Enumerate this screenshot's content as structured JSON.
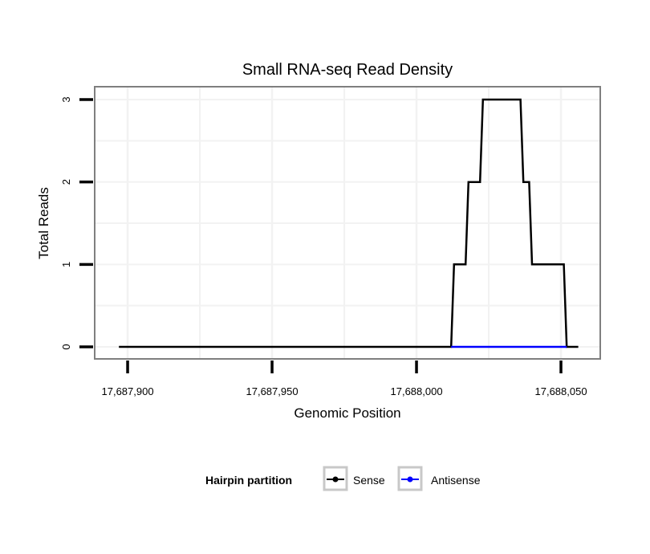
{
  "chart_data": {
    "type": "line",
    "title": "Small RNA-seq Read Density",
    "xlabel": "Genomic Position",
    "ylabel": "Total Reads",
    "xlim": [
      17687888.6,
      17688063.6
    ],
    "ylim": [
      -0.146,
      3.156
    ],
    "x_ticks": [
      17687900,
      17687950,
      17688000,
      17688050
    ],
    "x_tick_labels": [
      "17,687,900",
      "17,687,950",
      "17,688,000",
      "17,688,050"
    ],
    "y_ticks": [
      0,
      1,
      2,
      3
    ],
    "y_tick_labels": [
      "0",
      "1",
      "2",
      "3"
    ],
    "grid": true,
    "legend": {
      "title": "Hairpin partition",
      "position": "bottom",
      "entries": [
        "Sense",
        "Antisense"
      ]
    },
    "series": [
      {
        "name": "Sense",
        "color": "#000000",
        "points": [
          [
            17687897,
            0
          ],
          [
            17688012,
            0
          ],
          [
            17688013,
            1
          ],
          [
            17688017,
            1
          ],
          [
            17688018,
            2
          ],
          [
            17688022,
            2
          ],
          [
            17688023,
            3
          ],
          [
            17688036,
            3
          ],
          [
            17688037,
            2
          ],
          [
            17688039,
            2
          ],
          [
            17688040,
            1
          ],
          [
            17688051,
            1
          ],
          [
            17688052,
            0
          ],
          [
            17688056,
            0
          ]
        ]
      },
      {
        "name": "Antisense",
        "color": "#0000ff",
        "points": [
          [
            17688012,
            0
          ],
          [
            17688052,
            0
          ]
        ]
      }
    ]
  }
}
